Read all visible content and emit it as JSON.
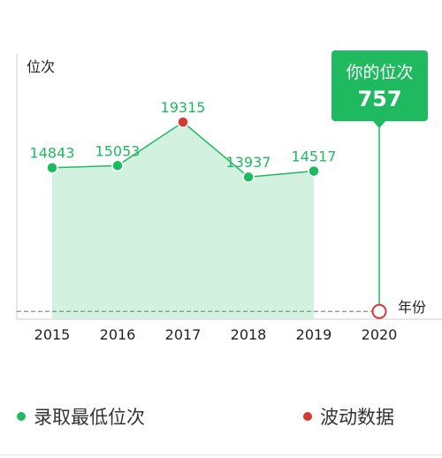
{
  "chart_data": {
    "type": "area",
    "ylabel": "位次",
    "xlabel": "年份",
    "x": [
      "2015",
      "2016",
      "2017",
      "2018",
      "2019",
      "2020"
    ],
    "series": [
      {
        "name": "录取最低位次",
        "x": [
          "2015",
          "2016",
          "2017",
          "2018",
          "2019"
        ],
        "values": [
          14843,
          15053,
          19315,
          13937,
          14517
        ],
        "highlight": [
          false,
          false,
          true,
          false,
          false
        ]
      }
    ],
    "marker": {
      "x": "2020",
      "value": 757,
      "title": "你的位次",
      "label": "757"
    },
    "ylim": [
      0,
      26000
    ]
  },
  "legend": [
    {
      "label": "录取最低位次",
      "color": "#1fba60"
    },
    {
      "label": "波动数据",
      "color": "#d43a30"
    }
  ],
  "colors": {
    "accent": "#1fba60",
    "area": "#d2f1de",
    "fluctuation": "#d43a30",
    "axis": "#cfcfcf",
    "dashed": "#8a8a8a"
  }
}
